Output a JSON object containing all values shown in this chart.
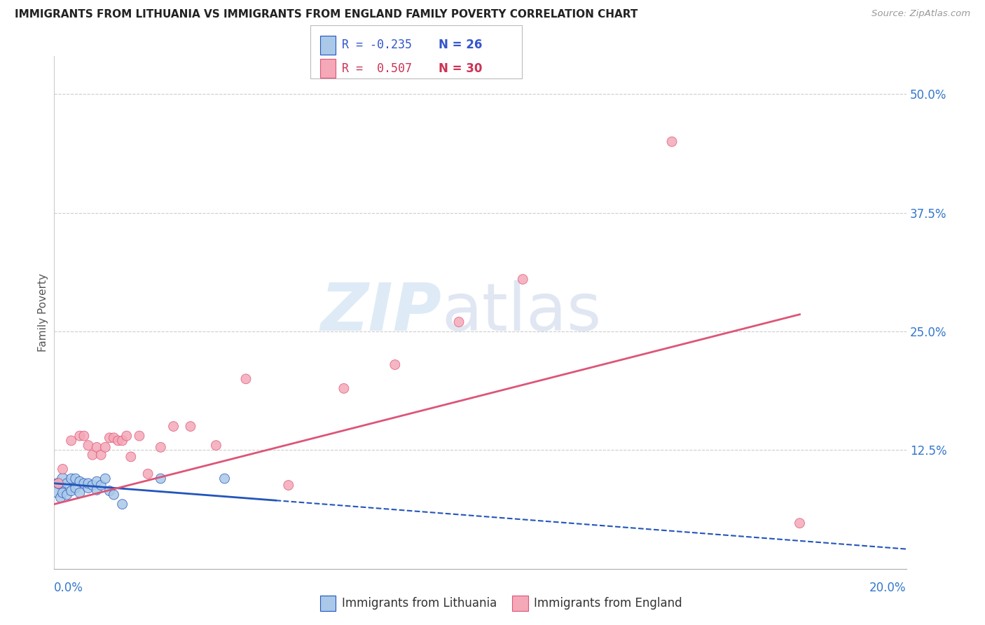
{
  "title": "IMMIGRANTS FROM LITHUANIA VS IMMIGRANTS FROM ENGLAND FAMILY POVERTY CORRELATION CHART",
  "source": "Source: ZipAtlas.com",
  "ylabel": "Family Poverty",
  "ytick_labels": [
    "50.0%",
    "37.5%",
    "25.0%",
    "12.5%"
  ],
  "ytick_values": [
    0.5,
    0.375,
    0.25,
    0.125
  ],
  "xmin": 0.0,
  "xmax": 0.2,
  "ymin": 0.0,
  "ymax": 0.54,
  "legend_r1": "R = -0.235",
  "legend_n1": "N = 26",
  "legend_r2": "R =  0.507",
  "legend_n2": "N = 30",
  "color_lithuania": "#aac8e8",
  "color_england": "#f4a8b8",
  "color_line_lithuania": "#2255bb",
  "color_line_england": "#dd5577",
  "lithuania_x": [
    0.0005,
    0.001,
    0.0015,
    0.002,
    0.002,
    0.003,
    0.003,
    0.004,
    0.004,
    0.005,
    0.005,
    0.006,
    0.006,
    0.007,
    0.008,
    0.008,
    0.009,
    0.01,
    0.01,
    0.011,
    0.012,
    0.013,
    0.014,
    0.016,
    0.025,
    0.04
  ],
  "lithuania_y": [
    0.085,
    0.09,
    0.075,
    0.08,
    0.095,
    0.078,
    0.09,
    0.082,
    0.095,
    0.085,
    0.095,
    0.08,
    0.092,
    0.09,
    0.085,
    0.09,
    0.088,
    0.083,
    0.092,
    0.088,
    0.095,
    0.082,
    0.078,
    0.068,
    0.095,
    0.095
  ],
  "lithuania_size": [
    350,
    120,
    100,
    100,
    120,
    100,
    100,
    100,
    100,
    100,
    100,
    100,
    100,
    100,
    100,
    100,
    100,
    100,
    100,
    100,
    100,
    100,
    100,
    100,
    100,
    100
  ],
  "england_x": [
    0.001,
    0.002,
    0.004,
    0.006,
    0.007,
    0.008,
    0.009,
    0.01,
    0.011,
    0.012,
    0.013,
    0.014,
    0.015,
    0.016,
    0.017,
    0.018,
    0.02,
    0.022,
    0.025,
    0.028,
    0.032,
    0.038,
    0.045,
    0.055,
    0.068,
    0.08,
    0.095,
    0.11,
    0.145,
    0.175
  ],
  "england_y": [
    0.09,
    0.105,
    0.135,
    0.14,
    0.14,
    0.13,
    0.12,
    0.128,
    0.12,
    0.128,
    0.138,
    0.138,
    0.135,
    0.135,
    0.14,
    0.118,
    0.14,
    0.1,
    0.128,
    0.15,
    0.15,
    0.13,
    0.2,
    0.088,
    0.19,
    0.215,
    0.26,
    0.305,
    0.45,
    0.048
  ],
  "england_size": [
    100,
    100,
    100,
    100,
    100,
    100,
    100,
    100,
    100,
    100,
    100,
    100,
    100,
    100,
    100,
    100,
    100,
    100,
    100,
    100,
    100,
    100,
    100,
    100,
    100,
    100,
    100,
    100,
    100,
    100
  ],
  "line_lith_x0": 0.0,
  "line_lith_x1": 0.052,
  "line_lith_y0": 0.09,
  "line_lith_y1": 0.072,
  "line_lith_dash_x1": 0.2,
  "line_lith_dash_y1": 0.03,
  "line_eng_x0": 0.0,
  "line_eng_x1": 0.175,
  "line_eng_y0": 0.068,
  "line_eng_y1": 0.268
}
